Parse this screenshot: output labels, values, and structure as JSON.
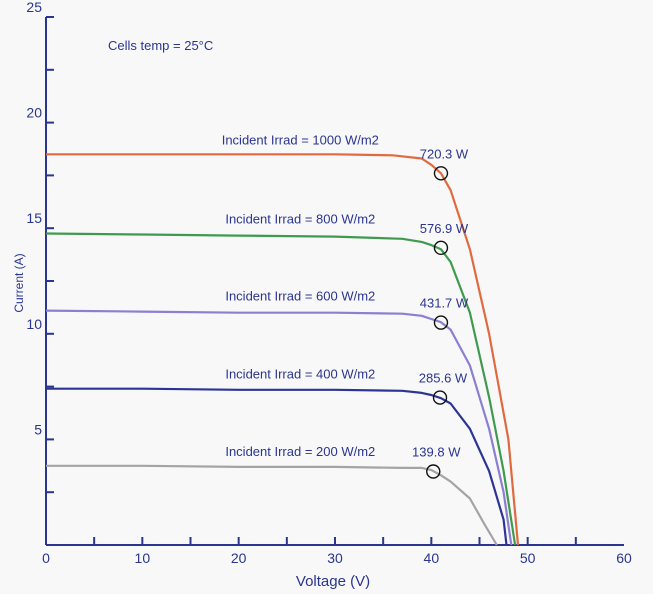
{
  "chart_data": {
    "type": "line",
    "title": "",
    "xlabel": "Voltage (V)",
    "ylabel": "Current (A)",
    "xlim": [
      0,
      60
    ],
    "ylim": [
      0,
      25
    ],
    "x_ticks": [
      0,
      10,
      20,
      30,
      40,
      50,
      60
    ],
    "y_ticks": [
      5,
      10,
      15,
      20,
      25
    ],
    "grid": false,
    "legend": "none",
    "annotation": "Cells temp = 25°C",
    "series": [
      {
        "name": "Incident Irrad = 1000 W/m2",
        "color": "#e06a3f",
        "points": [
          [
            0,
            18.5
          ],
          [
            10,
            18.5
          ],
          [
            20,
            18.5
          ],
          [
            30,
            18.5
          ],
          [
            36,
            18.45
          ],
          [
            39,
            18.3
          ],
          [
            40,
            18.0
          ],
          [
            41,
            17.6
          ],
          [
            42,
            16.8
          ],
          [
            44,
            14.0
          ],
          [
            46,
            10.0
          ],
          [
            48,
            5.0
          ],
          [
            49,
            0
          ]
        ],
        "mpp": {
          "v": 41.0,
          "i": 17.6,
          "label": "720.3 W"
        }
      },
      {
        "name": "Incident Irrad = 800 W/m2",
        "color": "#3f9a4f",
        "points": [
          [
            0,
            14.75
          ],
          [
            10,
            14.7
          ],
          [
            20,
            14.65
          ],
          [
            30,
            14.6
          ],
          [
            37,
            14.5
          ],
          [
            39,
            14.35
          ],
          [
            40,
            14.2
          ],
          [
            41,
            14.0
          ],
          [
            42,
            13.4
          ],
          [
            44,
            11.0
          ],
          [
            46,
            7.0
          ],
          [
            47.5,
            3.5
          ],
          [
            48.7,
            0
          ]
        ],
        "mpp": {
          "v": 41.0,
          "i": 14.07,
          "label": "576.9 W"
        }
      },
      {
        "name": "Incident Irrad = 600 W/m2",
        "color": "#8a7fd0",
        "points": [
          [
            0,
            11.1
          ],
          [
            10,
            11.05
          ],
          [
            20,
            11.0
          ],
          [
            30,
            11.0
          ],
          [
            37,
            10.95
          ],
          [
            39,
            10.85
          ],
          [
            40,
            10.7
          ],
          [
            41,
            10.55
          ],
          [
            42,
            10.2
          ],
          [
            44,
            8.5
          ],
          [
            46,
            5.5
          ],
          [
            47.5,
            2.5
          ],
          [
            48.3,
            0
          ]
        ],
        "mpp": {
          "v": 41.0,
          "i": 10.53,
          "label": "431.7 W"
        }
      },
      {
        "name": "Incident Irrad = 400 W/m2",
        "color": "#2c3596",
        "points": [
          [
            0,
            7.4
          ],
          [
            10,
            7.4
          ],
          [
            20,
            7.35
          ],
          [
            30,
            7.35
          ],
          [
            37,
            7.3
          ],
          [
            39,
            7.2
          ],
          [
            40,
            7.1
          ],
          [
            41,
            6.95
          ],
          [
            42,
            6.7
          ],
          [
            44,
            5.5
          ],
          [
            46,
            3.5
          ],
          [
            47.5,
            1.2
          ],
          [
            47.8,
            0
          ]
        ],
        "mpp": {
          "v": 40.9,
          "i": 6.98,
          "label": "285.6 W"
        }
      },
      {
        "name": "Incident Irrad = 200 W/m2",
        "color": "#a4a4a4",
        "points": [
          [
            0,
            3.75
          ],
          [
            10,
            3.75
          ],
          [
            20,
            3.7
          ],
          [
            30,
            3.7
          ],
          [
            37,
            3.65
          ],
          [
            39,
            3.65
          ],
          [
            40,
            3.55
          ],
          [
            41,
            3.3
          ],
          [
            42,
            3.0
          ],
          [
            44,
            2.2
          ],
          [
            45.5,
            1.0
          ],
          [
            46.8,
            0
          ]
        ],
        "mpp": {
          "v": 40.2,
          "i": 3.48,
          "label": "139.8 W"
        }
      }
    ]
  }
}
